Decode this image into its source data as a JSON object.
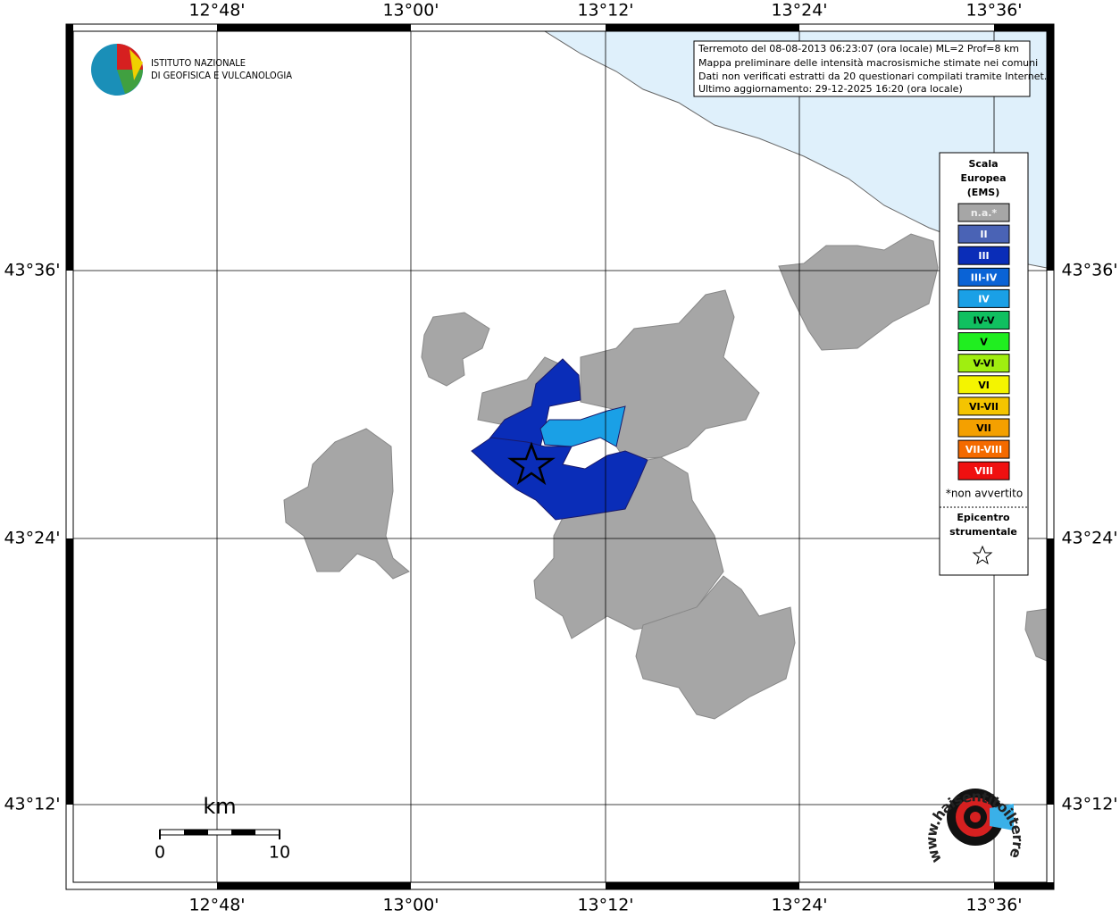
{
  "map": {
    "lon_labels": [
      "12°48'",
      "13°00'",
      "13°12'",
      "13°24'",
      "13°36'"
    ],
    "lat_labels": [
      "43°36'",
      "43°24'",
      "43°12'"
    ],
    "info": [
      "Terremoto del 08-08-2013 06:23:07 (ora locale) ML=2 Prof=8 km",
      "Mappa preliminare delle intensità macrosismiche stimate nei comuni",
      "Dati non verificati estratti da 20 questionari compilati tramite Internet.",
      "Ultimo aggiornamento: 29-12-2025 16:20 (ora locale)"
    ],
    "logo": [
      "ISTITUTO NAZIONALE",
      "DI GEOFISICA E VULCANOLOGIA"
    ],
    "legend": {
      "title": [
        "Scala",
        "Europea",
        "(EMS)"
      ],
      "items": [
        {
          "label": "n.a.*",
          "color": "#a6a6a6"
        },
        {
          "label": "II",
          "color": "#4a63b5"
        },
        {
          "label": "III",
          "color": "#0a2db8"
        },
        {
          "label": "III-IV",
          "color": "#0a63d6"
        },
        {
          "label": "IV",
          "color": "#1aa0e6"
        },
        {
          "label": "IV-V",
          "color": "#10c060"
        },
        {
          "label": "V",
          "color": "#20ee20"
        },
        {
          "label": "V-VI",
          "color": "#a0ee10"
        },
        {
          "label": "VI",
          "color": "#f4f400"
        },
        {
          "label": "VI-VII",
          "color": "#f4c400"
        },
        {
          "label": "VII",
          "color": "#f4a000"
        },
        {
          "label": "VII-VIII",
          "color": "#f46a00"
        },
        {
          "label": "VIII",
          "color": "#f01010"
        }
      ],
      "note": "*non avvertito",
      "epicenter": [
        "Epicentro",
        "strumentale"
      ]
    },
    "scale": {
      "unit": "km",
      "ticks": [
        0,
        10
      ]
    },
    "stamp": "www.haisentitoilterremoto.it"
  }
}
